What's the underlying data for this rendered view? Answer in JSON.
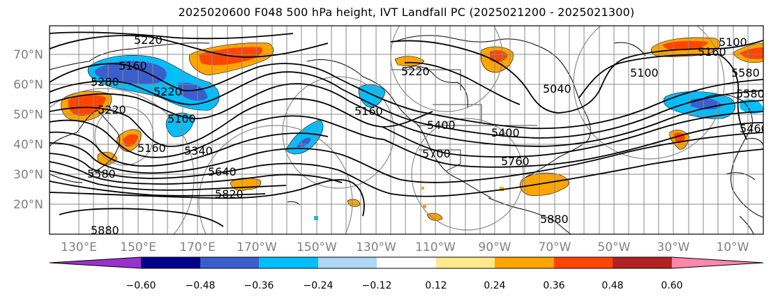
{
  "title": "2025020600 F048 500 hPa height, IVT Landfall PC (2025021200 - 2025021300)",
  "lat_ticks": [
    "70°N",
    "60°N",
    "50°N",
    "40°N",
    "30°N",
    "20°N"
  ],
  "lon_ticks": [
    "130°E",
    "150°E",
    "170°E",
    "170°W",
    "150°W",
    "130°W",
    "110°W",
    "90°W",
    "70°W",
    "50°W",
    "30°W",
    "10°W"
  ],
  "contour_labels": [
    "5220",
    "5160",
    "5280",
    "5220",
    "5100",
    "5220",
    "5160",
    "5340",
    "5580",
    "5640",
    "5820",
    "5880",
    "5220",
    "5400",
    "5040",
    "5100",
    "5760",
    "5700",
    "5400",
    "5160",
    "5100",
    "5580",
    "5580",
    "5460",
    "5880",
    "5160"
  ],
  "colorbar": {
    "labels": [
      "−0.60",
      "−0.48",
      "−0.36",
      "−0.24",
      "−0.12",
      "0.12",
      "0.24",
      "0.36",
      "0.48",
      "0.60"
    ],
    "colors": [
      "#9932cc",
      "#00008b",
      "#3a5fcd",
      "#00bfff",
      "#add8f6",
      "#ffffff",
      "#ffeb8a",
      "#ffa500",
      "#ff4500",
      "#b22222",
      "#ff88aa"
    ]
  }
}
